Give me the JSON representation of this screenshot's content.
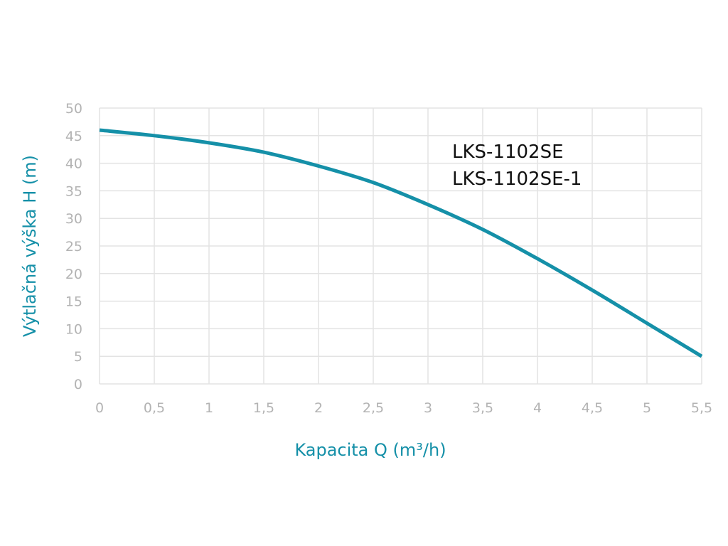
{
  "chart_data": {
    "type": "line",
    "title": "",
    "xlabel": "Kapacita Q (m³/h)",
    "ylabel": "Výtlačná výška H (m)",
    "xlim": [
      0,
      5.5
    ],
    "ylim": [
      0,
      50
    ],
    "x_ticks": [
      "0",
      "0,5",
      "1",
      "1,5",
      "2",
      "2,5",
      "3",
      "3,5",
      "4",
      "4,5",
      "5",
      "5,5"
    ],
    "y_ticks": [
      "0",
      "5",
      "10",
      "15",
      "20",
      "25",
      "30",
      "35",
      "40",
      "45",
      "50"
    ],
    "grid": true,
    "annotations": [
      "LKS-1102SE",
      "LKS-1102SE-1"
    ],
    "series": [
      {
        "x": [
          0,
          0.5,
          1,
          1.5,
          2,
          2.5,
          3,
          3.5,
          4,
          4.5,
          5,
          5.5
        ],
        "values": [
          46,
          45,
          43.7,
          42,
          39.5,
          36.5,
          32.5,
          28,
          22.7,
          17,
          11,
          5
        ],
        "color": "#1590a8"
      }
    ],
    "colors": {
      "line": "#1590a8",
      "grid": "#e3e3e3",
      "tick_text": "#b3b3b3",
      "axis_title": "#1590a8",
      "annotation": "#111111"
    }
  }
}
